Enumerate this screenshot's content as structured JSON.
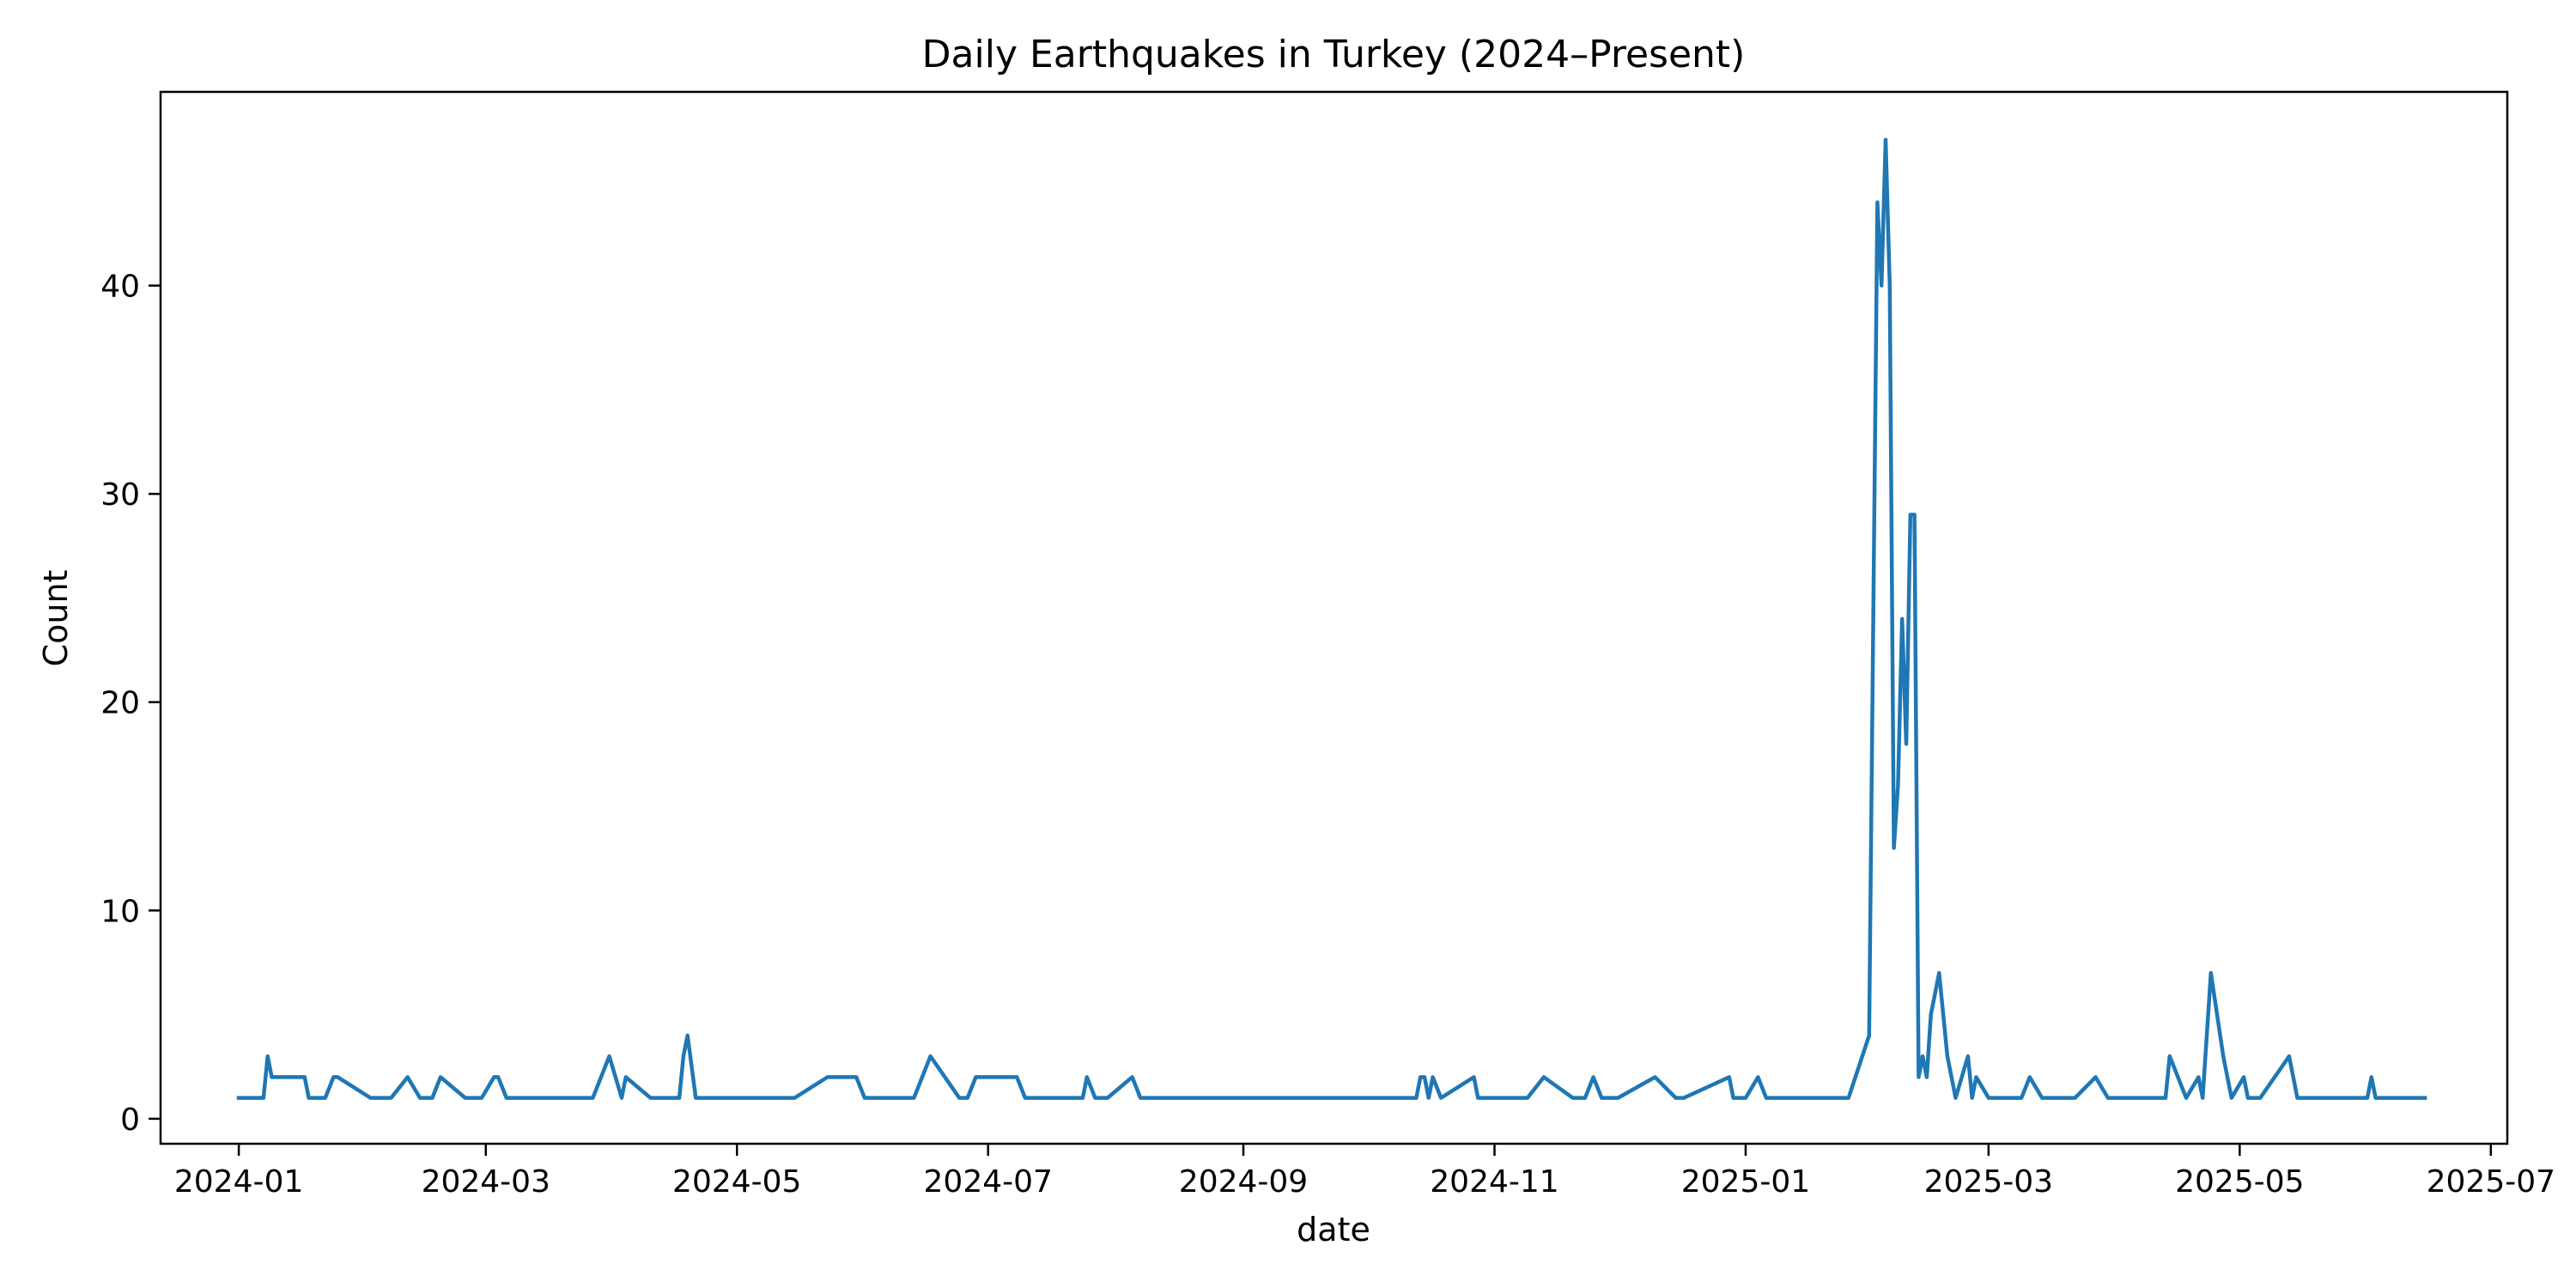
{
  "chart_data": {
    "type": "line",
    "title": "Daily Earthquakes in Turkey (2024–Present)",
    "xlabel": "date",
    "ylabel": "Count",
    "x_axis_type": "date",
    "xlim": [
      "2023-12-13",
      "2025-07-05"
    ],
    "ylim": [
      -1.2,
      49.3
    ],
    "grid": false,
    "legend": "none",
    "x_ticks": [
      "2024-01",
      "2024-03",
      "2024-05",
      "2024-07",
      "2024-09",
      "2024-11",
      "2025-01",
      "2025-03",
      "2025-05",
      "2025-07"
    ],
    "y_ticks": [
      "0",
      "10",
      "20",
      "30",
      "40"
    ],
    "colors": {
      "line": "#1f77b4",
      "axes": "#000000",
      "background": "#ffffff"
    },
    "series": [
      {
        "points": [
          [
            "2024-01-01",
            1
          ],
          [
            "2024-01-07",
            1
          ],
          [
            "2024-01-08",
            3
          ],
          [
            "2024-01-09",
            2
          ],
          [
            "2024-01-10",
            2
          ],
          [
            "2024-01-17",
            2
          ],
          [
            "2024-01-18",
            1
          ],
          [
            "2024-01-22",
            1
          ],
          [
            "2024-01-24",
            2
          ],
          [
            "2024-01-25",
            2
          ],
          [
            "2024-02-02",
            1
          ],
          [
            "2024-02-07",
            1
          ],
          [
            "2024-02-11",
            2
          ],
          [
            "2024-02-14",
            1
          ],
          [
            "2024-02-17",
            1
          ],
          [
            "2024-02-19",
            2
          ],
          [
            "2024-02-25",
            1
          ],
          [
            "2024-02-29",
            1
          ],
          [
            "2024-03-03",
            2
          ],
          [
            "2024-03-04",
            2
          ],
          [
            "2024-03-06",
            1
          ],
          [
            "2024-03-27",
            1
          ],
          [
            "2024-03-31",
            3
          ],
          [
            "2024-04-03",
            1
          ],
          [
            "2024-04-04",
            2
          ],
          [
            "2024-04-10",
            1
          ],
          [
            "2024-04-17",
            1
          ],
          [
            "2024-04-18",
            3
          ],
          [
            "2024-04-19",
            4
          ],
          [
            "2024-04-21",
            1
          ],
          [
            "2024-05-15",
            1
          ],
          [
            "2024-05-23",
            2
          ],
          [
            "2024-05-30",
            2
          ],
          [
            "2024-06-01",
            1
          ],
          [
            "2024-06-13",
            1
          ],
          [
            "2024-06-17",
            3
          ],
          [
            "2024-06-24",
            1
          ],
          [
            "2024-06-26",
            1
          ],
          [
            "2024-06-28",
            2
          ],
          [
            "2024-07-08",
            2
          ],
          [
            "2024-07-10",
            1
          ],
          [
            "2024-07-24",
            1
          ],
          [
            "2024-07-25",
            2
          ],
          [
            "2024-07-27",
            1
          ],
          [
            "2024-07-30",
            1
          ],
          [
            "2024-08-05",
            2
          ],
          [
            "2024-08-07",
            1
          ],
          [
            "2024-10-13",
            1
          ],
          [
            "2024-10-14",
            2
          ],
          [
            "2024-10-15",
            2
          ],
          [
            "2024-10-16",
            1
          ],
          [
            "2024-10-17",
            2
          ],
          [
            "2024-10-19",
            1
          ],
          [
            "2024-10-27",
            2
          ],
          [
            "2024-10-28",
            1
          ],
          [
            "2024-11-09",
            1
          ],
          [
            "2024-11-13",
            2
          ],
          [
            "2024-11-20",
            1
          ],
          [
            "2024-11-23",
            1
          ],
          [
            "2024-11-25",
            2
          ],
          [
            "2024-11-27",
            1
          ],
          [
            "2024-12-01",
            1
          ],
          [
            "2024-12-10",
            2
          ],
          [
            "2024-12-15",
            1
          ],
          [
            "2024-12-17",
            1
          ],
          [
            "2024-12-28",
            2
          ],
          [
            "2024-12-29",
            1
          ],
          [
            "2025-01-01",
            1
          ],
          [
            "2025-01-04",
            2
          ],
          [
            "2025-01-06",
            1
          ],
          [
            "2025-01-26",
            1
          ],
          [
            "2025-01-31",
            4
          ],
          [
            "2025-02-02",
            44
          ],
          [
            "2025-02-03",
            40
          ],
          [
            "2025-02-04",
            47
          ],
          [
            "2025-02-05",
            40
          ],
          [
            "2025-02-06",
            13
          ],
          [
            "2025-02-07",
            16
          ],
          [
            "2025-02-08",
            24
          ],
          [
            "2025-02-09",
            18
          ],
          [
            "2025-02-10",
            29
          ],
          [
            "2025-02-11",
            29
          ],
          [
            "2025-02-12",
            2
          ],
          [
            "2025-02-13",
            3
          ],
          [
            "2025-02-14",
            2
          ],
          [
            "2025-02-15",
            5
          ],
          [
            "2025-02-17",
            7
          ],
          [
            "2025-02-19",
            3
          ],
          [
            "2025-02-21",
            1
          ],
          [
            "2025-02-24",
            3
          ],
          [
            "2025-02-25",
            1
          ],
          [
            "2025-02-26",
            2
          ],
          [
            "2025-03-01",
            1
          ],
          [
            "2025-03-09",
            1
          ],
          [
            "2025-03-11",
            2
          ],
          [
            "2025-03-14",
            1
          ],
          [
            "2025-03-22",
            1
          ],
          [
            "2025-03-27",
            2
          ],
          [
            "2025-03-30",
            1
          ],
          [
            "2025-04-13",
            1
          ],
          [
            "2025-04-14",
            3
          ],
          [
            "2025-04-18",
            1
          ],
          [
            "2025-04-21",
            2
          ],
          [
            "2025-04-22",
            1
          ],
          [
            "2025-04-24",
            7
          ],
          [
            "2025-04-27",
            3
          ],
          [
            "2025-04-29",
            1
          ],
          [
            "2025-05-02",
            2
          ],
          [
            "2025-05-03",
            1
          ],
          [
            "2025-05-06",
            1
          ],
          [
            "2025-05-13",
            3
          ],
          [
            "2025-05-15",
            1
          ],
          [
            "2025-06-01",
            1
          ],
          [
            "2025-06-02",
            2
          ],
          [
            "2025-06-03",
            1
          ],
          [
            "2025-06-15",
            1
          ]
        ]
      }
    ]
  }
}
